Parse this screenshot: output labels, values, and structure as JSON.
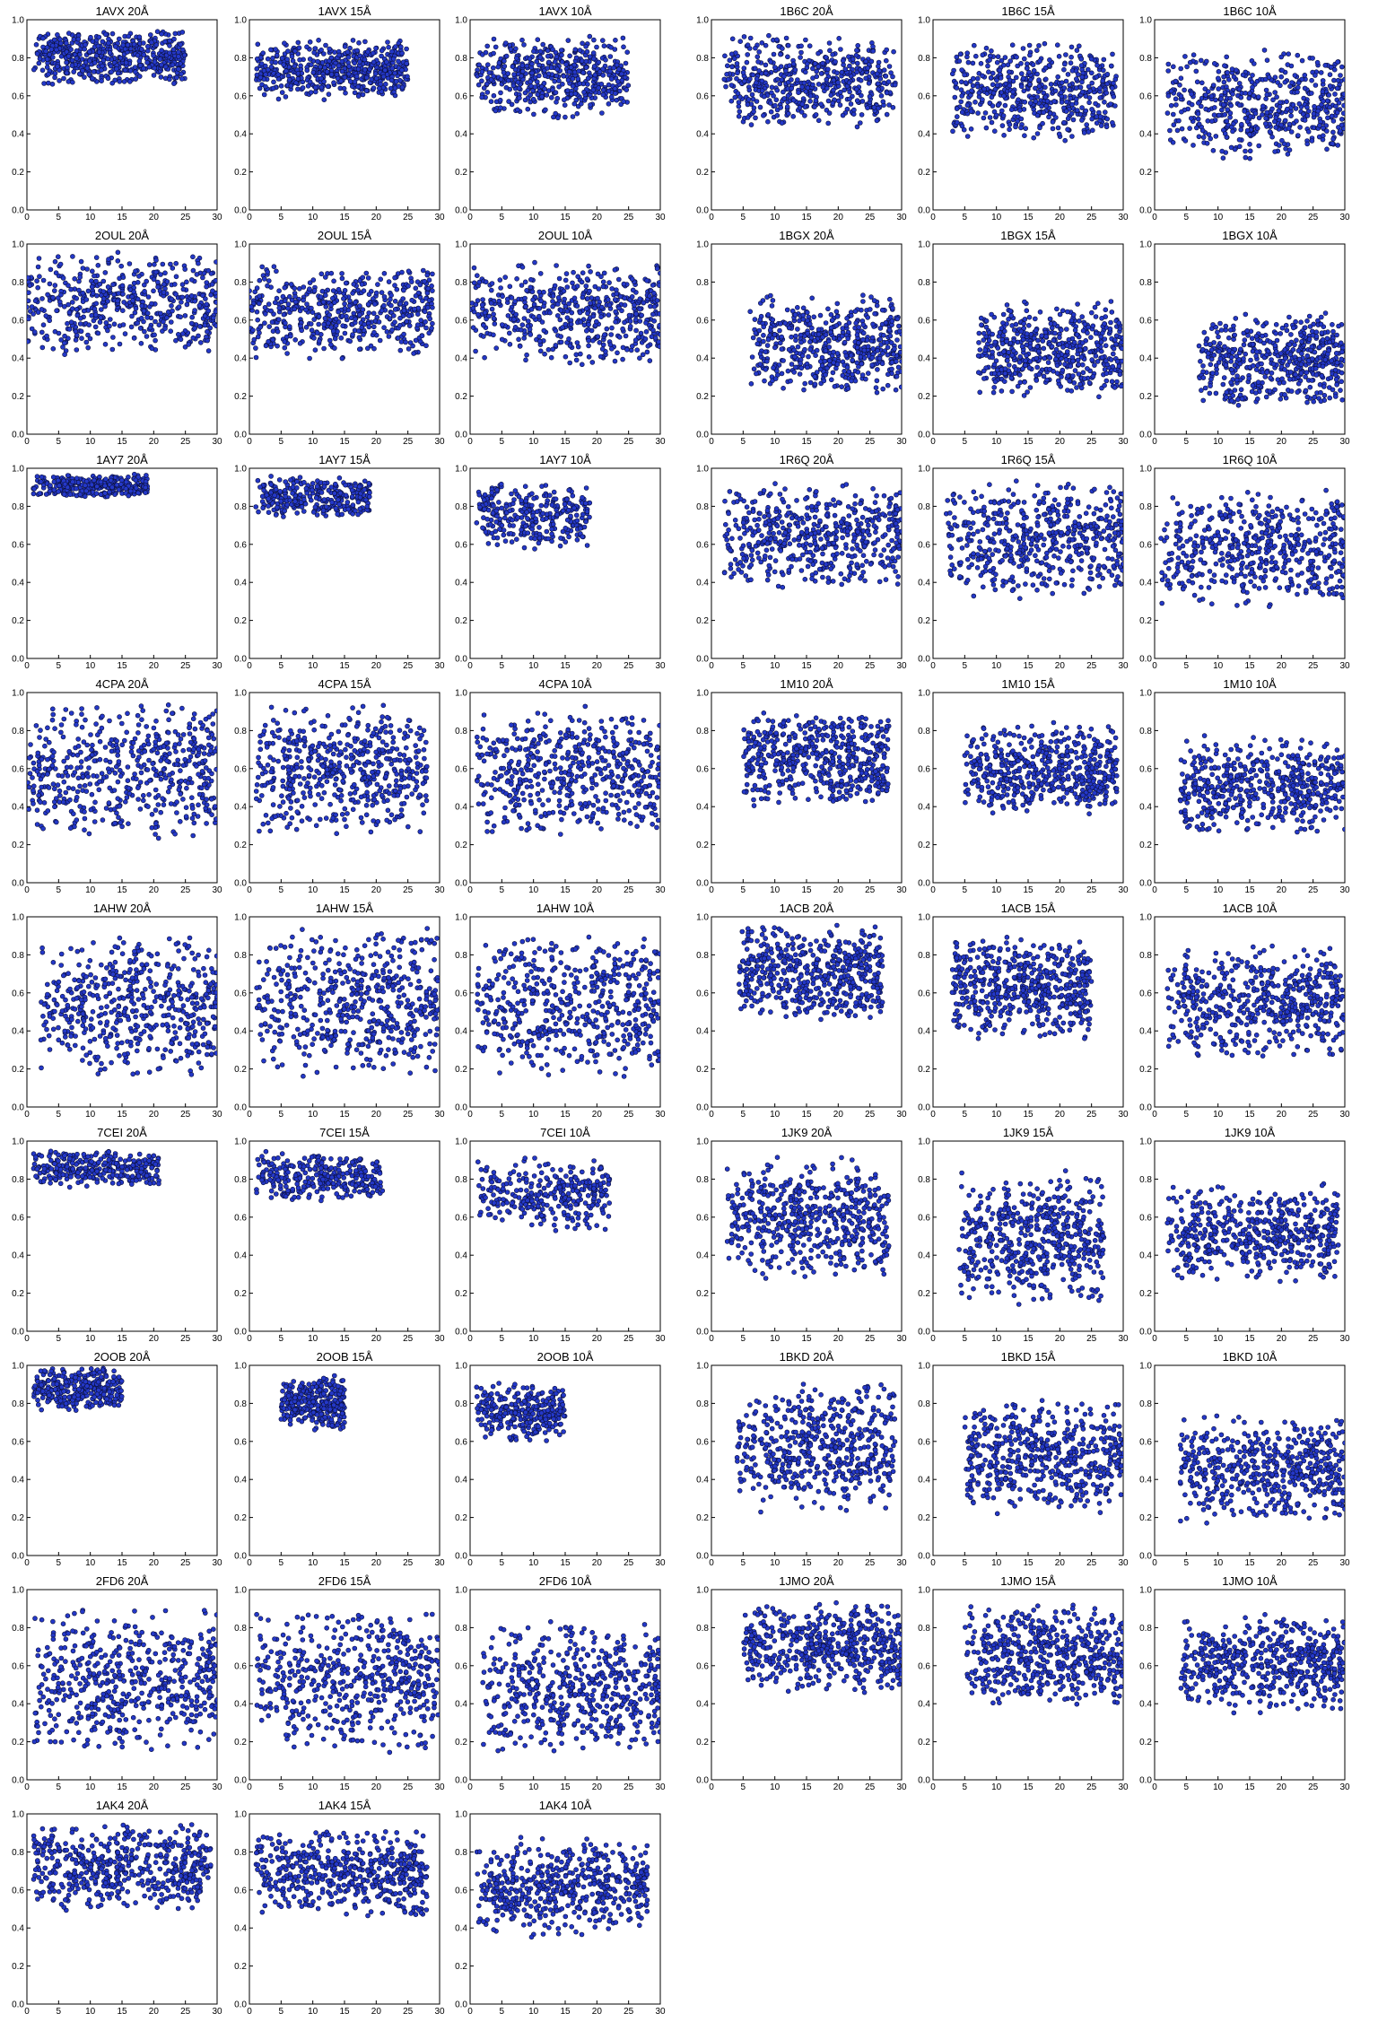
{
  "figure": {
    "marker_color": "#2438c8",
    "marker_edge": "#0b0f3a",
    "xlim": [
      0,
      30
    ],
    "ylim": [
      0.0,
      1.0
    ],
    "xticks": [
      "0",
      "5",
      "10",
      "15",
      "20",
      "25",
      "30"
    ],
    "yticks": [
      "0.0",
      "0.2",
      "0.4",
      "0.6",
      "0.8",
      "1.0"
    ]
  },
  "chart_data": [
    {
      "type": "scatter",
      "title": "1AVX 20Å",
      "xlim": [
        0,
        30
      ],
      "ylim": [
        0,
        1
      ],
      "x_range": [
        1,
        25
      ],
      "y_range": [
        0.6,
        0.95
      ],
      "density": "high"
    },
    {
      "type": "scatter",
      "title": "1AVX 15Å",
      "xlim": [
        0,
        30
      ],
      "ylim": [
        0,
        1
      ],
      "x_range": [
        1,
        25
      ],
      "y_range": [
        0.52,
        0.9
      ],
      "density": "high"
    },
    {
      "type": "scatter",
      "title": "1AVX 10Å",
      "xlim": [
        0,
        30
      ],
      "ylim": [
        0,
        1
      ],
      "x_range": [
        1,
        25
      ],
      "y_range": [
        0.4,
        0.92
      ],
      "density": "high"
    },
    {
      "type": "scatter",
      "title": "1B6C 20Å",
      "xlim": [
        0,
        30
      ],
      "ylim": [
        0,
        1
      ],
      "x_range": [
        2,
        29
      ],
      "y_range": [
        0.32,
        0.93
      ],
      "density": "high"
    },
    {
      "type": "scatter",
      "title": "1B6C 15Å",
      "xlim": [
        0,
        30
      ],
      "ylim": [
        0,
        1
      ],
      "x_range": [
        3,
        29
      ],
      "y_range": [
        0.25,
        0.9
      ],
      "density": "high"
    },
    {
      "type": "scatter",
      "title": "1B6C 10Å",
      "xlim": [
        0,
        30
      ],
      "ylim": [
        0,
        1
      ],
      "x_range": [
        2,
        30
      ],
      "y_range": [
        0.15,
        0.85
      ],
      "density": "high"
    },
    {
      "type": "scatter",
      "title": "2OUL 20Å",
      "xlim": [
        0,
        30
      ],
      "ylim": [
        0,
        1
      ],
      "x_range": [
        0,
        30
      ],
      "y_range": [
        0.3,
        0.97
      ],
      "density": "high"
    },
    {
      "type": "scatter",
      "title": "2OUL 15Å",
      "xlim": [
        0,
        30
      ],
      "ylim": [
        0,
        1
      ],
      "x_range": [
        0,
        29
      ],
      "y_range": [
        0.3,
        0.9
      ],
      "density": "high"
    },
    {
      "type": "scatter",
      "title": "2OUL 10Å",
      "xlim": [
        0,
        30
      ],
      "ylim": [
        0,
        1
      ],
      "x_range": [
        0,
        30
      ],
      "y_range": [
        0.25,
        0.92
      ],
      "density": "high"
    },
    {
      "type": "scatter",
      "title": "1BGX 20Å",
      "xlim": [
        0,
        30
      ],
      "ylim": [
        0,
        1
      ],
      "x_range": [
        6,
        30
      ],
      "y_range": [
        0.1,
        0.75
      ],
      "density": "high"
    },
    {
      "type": "scatter",
      "title": "1BGX 15Å",
      "xlim": [
        0,
        30
      ],
      "ylim": [
        0,
        1
      ],
      "x_range": [
        7,
        30
      ],
      "y_range": [
        0.1,
        0.72
      ],
      "density": "high"
    },
    {
      "type": "scatter",
      "title": "1BGX 10Å",
      "xlim": [
        0,
        30
      ],
      "ylim": [
        0,
        1
      ],
      "x_range": [
        7,
        30
      ],
      "y_range": [
        0.05,
        0.65
      ],
      "density": "high"
    },
    {
      "type": "scatter",
      "title": "1AY7 20Å",
      "xlim": [
        0,
        30
      ],
      "ylim": [
        0,
        1
      ],
      "x_range": [
        1,
        19
      ],
      "y_range": [
        0.82,
        0.97
      ],
      "density": "medium"
    },
    {
      "type": "scatter",
      "title": "1AY7 15Å",
      "xlim": [
        0,
        30
      ],
      "ylim": [
        0,
        1
      ],
      "x_range": [
        1,
        19
      ],
      "y_range": [
        0.7,
        0.96
      ],
      "density": "medium"
    },
    {
      "type": "scatter",
      "title": "1AY7 10Å",
      "xlim": [
        0,
        30
      ],
      "ylim": [
        0,
        1
      ],
      "x_range": [
        1,
        19
      ],
      "y_range": [
        0.5,
        0.93
      ],
      "density": "medium"
    },
    {
      "type": "scatter",
      "title": "1R6Q 20Å",
      "xlim": [
        0,
        30
      ],
      "ylim": [
        0,
        1
      ],
      "x_range": [
        2,
        30
      ],
      "y_range": [
        0.25,
        0.95
      ],
      "density": "high"
    },
    {
      "type": "scatter",
      "title": "1R6Q 15Å",
      "xlim": [
        0,
        30
      ],
      "ylim": [
        0,
        1
      ],
      "x_range": [
        2,
        30
      ],
      "y_range": [
        0.2,
        0.94
      ],
      "density": "high"
    },
    {
      "type": "scatter",
      "title": "1R6Q 10Å",
      "xlim": [
        0,
        30
      ],
      "ylim": [
        0,
        1
      ],
      "x_range": [
        1,
        30
      ],
      "y_range": [
        0.15,
        0.9
      ],
      "density": "high"
    },
    {
      "type": "scatter",
      "title": "4CPA 20Å",
      "xlim": [
        0,
        30
      ],
      "ylim": [
        0,
        1
      ],
      "x_range": [
        0,
        30
      ],
      "y_range": [
        0.08,
        0.97
      ],
      "density": "high"
    },
    {
      "type": "scatter",
      "title": "4CPA 15Å",
      "xlim": [
        0,
        30
      ],
      "ylim": [
        0,
        1
      ],
      "x_range": [
        1,
        28
      ],
      "y_range": [
        0.1,
        0.95
      ],
      "density": "high"
    },
    {
      "type": "scatter",
      "title": "4CPA 10Å",
      "xlim": [
        0,
        30
      ],
      "ylim": [
        0,
        1
      ],
      "x_range": [
        1,
        30
      ],
      "y_range": [
        0.1,
        0.93
      ],
      "density": "high"
    },
    {
      "type": "scatter",
      "title": "1M10 20Å",
      "xlim": [
        0,
        30
      ],
      "ylim": [
        0,
        1
      ],
      "x_range": [
        5,
        28
      ],
      "y_range": [
        0.3,
        0.92
      ],
      "density": "high"
    },
    {
      "type": "scatter",
      "title": "1M10 15Å",
      "xlim": [
        0,
        30
      ],
      "ylim": [
        0,
        1
      ],
      "x_range": [
        5,
        29
      ],
      "y_range": [
        0.25,
        0.85
      ],
      "density": "high"
    },
    {
      "type": "scatter",
      "title": "1M10 10Å",
      "xlim": [
        0,
        30
      ],
      "ylim": [
        0,
        1
      ],
      "x_range": [
        4,
        30
      ],
      "y_range": [
        0.15,
        0.78
      ],
      "density": "high"
    },
    {
      "type": "scatter",
      "title": "1AHW 20Å",
      "xlim": [
        0,
        30
      ],
      "ylim": [
        0,
        1
      ],
      "x_range": [
        2,
        30
      ],
      "y_range": [
        0.0,
        0.92
      ],
      "density": "high"
    },
    {
      "type": "scatter",
      "title": "1AHW 15Å",
      "xlim": [
        0,
        30
      ],
      "ylim": [
        0,
        1
      ],
      "x_range": [
        1,
        30
      ],
      "y_range": [
        0.0,
        0.95
      ],
      "density": "high"
    },
    {
      "type": "scatter",
      "title": "1AHW 10Å",
      "xlim": [
        0,
        30
      ],
      "ylim": [
        0,
        1
      ],
      "x_range": [
        1,
        30
      ],
      "y_range": [
        0.0,
        0.92
      ],
      "density": "high"
    },
    {
      "type": "scatter",
      "title": "1ACB 20Å",
      "xlim": [
        0,
        30
      ],
      "ylim": [
        0,
        1
      ],
      "x_range": [
        4,
        27
      ],
      "y_range": [
        0.35,
        0.96
      ],
      "density": "high"
    },
    {
      "type": "scatter",
      "title": "1ACB 15Å",
      "xlim": [
        0,
        30
      ],
      "ylim": [
        0,
        1
      ],
      "x_range": [
        3,
        25
      ],
      "y_range": [
        0.25,
        0.92
      ],
      "density": "high"
    },
    {
      "type": "scatter",
      "title": "1ACB 10Å",
      "xlim": [
        0,
        30
      ],
      "ylim": [
        0,
        1
      ],
      "x_range": [
        2,
        30
      ],
      "y_range": [
        0.15,
        0.85
      ],
      "density": "high"
    },
    {
      "type": "scatter",
      "title": "7CEI 20Å",
      "xlim": [
        0,
        30
      ],
      "ylim": [
        0,
        1
      ],
      "x_range": [
        1,
        21
      ],
      "y_range": [
        0.72,
        0.96
      ],
      "density": "medium"
    },
    {
      "type": "scatter",
      "title": "7CEI 15Å",
      "xlim": [
        0,
        30
      ],
      "ylim": [
        0,
        1
      ],
      "x_range": [
        1,
        21
      ],
      "y_range": [
        0.62,
        0.95
      ],
      "density": "medium"
    },
    {
      "type": "scatter",
      "title": "7CEI 10Å",
      "xlim": [
        0,
        30
      ],
      "ylim": [
        0,
        1
      ],
      "x_range": [
        1,
        22
      ],
      "y_range": [
        0.45,
        0.92
      ],
      "density": "medium"
    },
    {
      "type": "scatter",
      "title": "1JK9 20Å",
      "xlim": [
        0,
        30
      ],
      "ylim": [
        0,
        1
      ],
      "x_range": [
        2,
        28
      ],
      "y_range": [
        0.15,
        0.92
      ],
      "density": "high"
    },
    {
      "type": "scatter",
      "title": "1JK9 15Å",
      "xlim": [
        0,
        30
      ],
      "ylim": [
        0,
        1
      ],
      "x_range": [
        4,
        27
      ],
      "y_range": [
        0.0,
        0.86
      ],
      "density": "high"
    },
    {
      "type": "scatter",
      "title": "1JK9 10Å",
      "xlim": [
        0,
        30
      ],
      "ylim": [
        0,
        1
      ],
      "x_range": [
        2,
        29
      ],
      "y_range": [
        0.15,
        0.78
      ],
      "density": "high"
    },
    {
      "type": "scatter",
      "title": "2OOB 20Å",
      "xlim": [
        0,
        30
      ],
      "ylim": [
        0,
        1
      ],
      "x_range": [
        1,
        15
      ],
      "y_range": [
        0.72,
        0.99
      ],
      "density": "medium"
    },
    {
      "type": "scatter",
      "title": "2OOB 15Å",
      "xlim": [
        0,
        30
      ],
      "ylim": [
        0,
        1
      ],
      "x_range": [
        5,
        15
      ],
      "y_range": [
        0.6,
        0.95
      ],
      "density": "medium"
    },
    {
      "type": "scatter",
      "title": "2OOB 10Å",
      "xlim": [
        0,
        30
      ],
      "ylim": [
        0,
        1
      ],
      "x_range": [
        1,
        15
      ],
      "y_range": [
        0.52,
        0.92
      ],
      "density": "medium"
    },
    {
      "type": "scatter",
      "title": "1BKD 20Å",
      "xlim": [
        0,
        30
      ],
      "ylim": [
        0,
        1
      ],
      "x_range": [
        4,
        29
      ],
      "y_range": [
        0.1,
        0.92
      ],
      "density": "high"
    },
    {
      "type": "scatter",
      "title": "1BKD 15Å",
      "xlim": [
        0,
        30
      ],
      "ylim": [
        0,
        1
      ],
      "x_range": [
        5,
        30
      ],
      "y_range": [
        0.1,
        0.82
      ],
      "density": "high"
    },
    {
      "type": "scatter",
      "title": "1BKD 10Å",
      "xlim": [
        0,
        30
      ],
      "ylim": [
        0,
        1
      ],
      "x_range": [
        4,
        30
      ],
      "y_range": [
        0.05,
        0.75
      ],
      "density": "high"
    },
    {
      "type": "scatter",
      "title": "2FD6 20Å",
      "xlim": [
        0,
        30
      ],
      "ylim": [
        0,
        1
      ],
      "x_range": [
        1,
        30
      ],
      "y_range": [
        0.0,
        0.92
      ],
      "density": "high"
    },
    {
      "type": "scatter",
      "title": "2FD6 15Å",
      "xlim": [
        0,
        30
      ],
      "ylim": [
        0,
        1
      ],
      "x_range": [
        1,
        30
      ],
      "y_range": [
        0.0,
        0.9
      ],
      "density": "high"
    },
    {
      "type": "scatter",
      "title": "2FD6 10Å",
      "xlim": [
        0,
        30
      ],
      "ylim": [
        0,
        1
      ],
      "x_range": [
        2,
        30
      ],
      "y_range": [
        0.0,
        0.85
      ],
      "density": "high"
    },
    {
      "type": "scatter",
      "title": "1JMO 20Å",
      "xlim": [
        0,
        30
      ],
      "ylim": [
        0,
        1
      ],
      "x_range": [
        5,
        30
      ],
      "y_range": [
        0.37,
        0.94
      ],
      "density": "high"
    },
    {
      "type": "scatter",
      "title": "1JMO 15Å",
      "xlim": [
        0,
        30
      ],
      "ylim": [
        0,
        1
      ],
      "x_range": [
        5,
        30
      ],
      "y_range": [
        0.28,
        0.92
      ],
      "density": "high"
    },
    {
      "type": "scatter",
      "title": "1JMO 10Å",
      "xlim": [
        0,
        30
      ],
      "ylim": [
        0,
        1
      ],
      "x_range": [
        4,
        30
      ],
      "y_range": [
        0.25,
        0.88
      ],
      "density": "high"
    },
    {
      "type": "scatter",
      "title": "1AK4 20Å",
      "xlim": [
        0,
        30
      ],
      "ylim": [
        0,
        1
      ],
      "x_range": [
        1,
        29
      ],
      "y_range": [
        0.4,
        0.96
      ],
      "density": "high"
    },
    {
      "type": "scatter",
      "title": "1AK4 15Å",
      "xlim": [
        0,
        30
      ],
      "ylim": [
        0,
        1
      ],
      "x_range": [
        1,
        28
      ],
      "y_range": [
        0.35,
        0.93
      ],
      "density": "high"
    },
    {
      "type": "scatter",
      "title": "1AK4 10Å",
      "xlim": [
        0,
        30
      ],
      "ylim": [
        0,
        1
      ],
      "x_range": [
        1,
        28
      ],
      "y_range": [
        0.25,
        0.88
      ],
      "density": "high"
    }
  ]
}
